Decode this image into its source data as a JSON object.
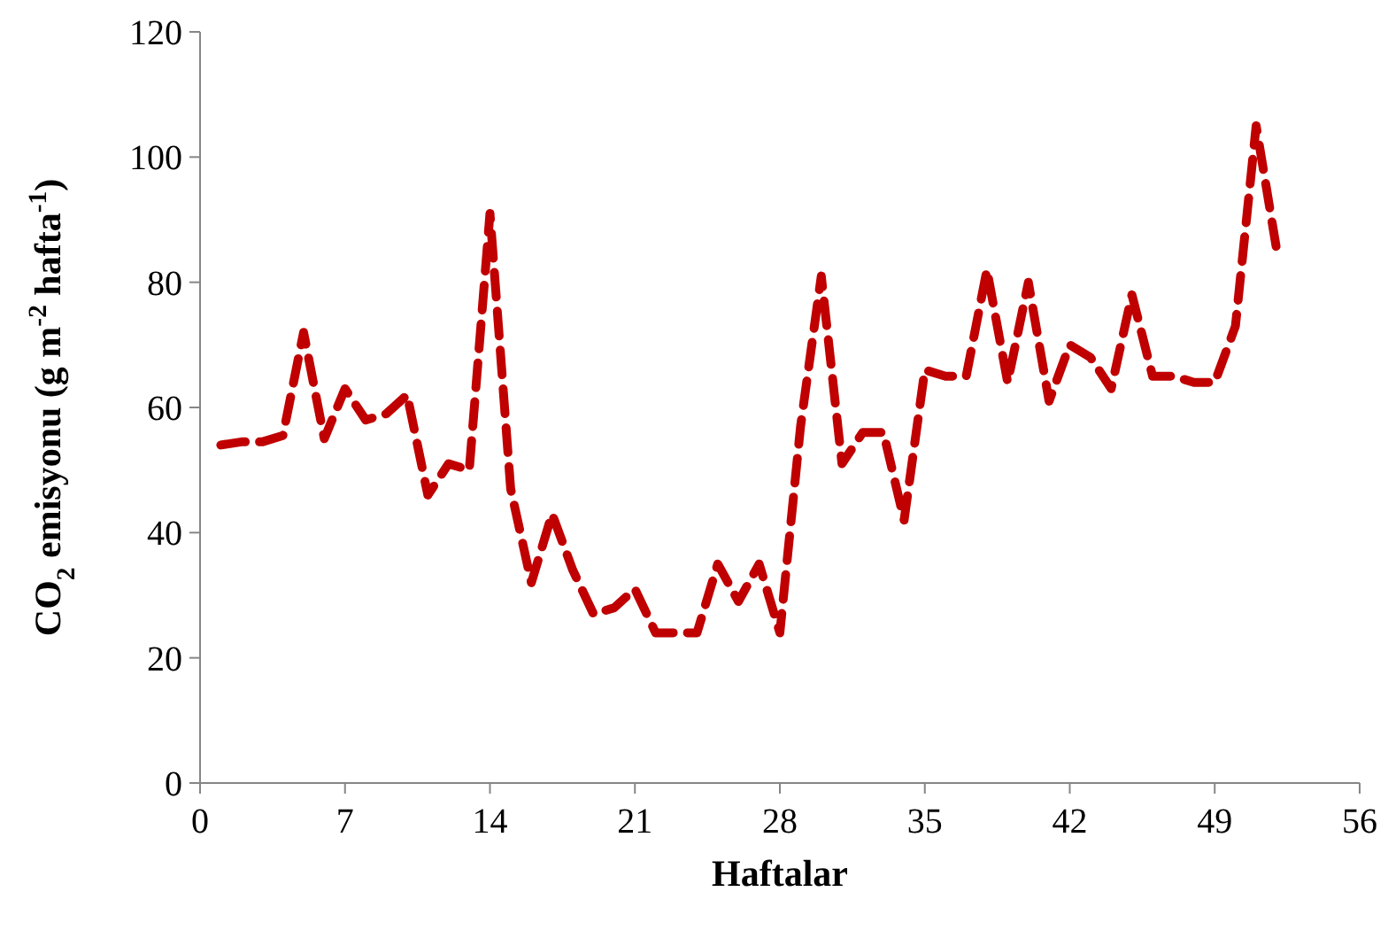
{
  "chart_data": {
    "type": "line",
    "xlabel": "Haftalar",
    "ylabel": "CO$_{2}$ emisyonu (g m$^{-2}$ hafta$^{-1}$)",
    "x": [
      1,
      2,
      3,
      4,
      5,
      6,
      7,
      8,
      9,
      10,
      11,
      12,
      13,
      14,
      15,
      16,
      17,
      18,
      19,
      20,
      21,
      22,
      23,
      24,
      25,
      26,
      27,
      28,
      29,
      30,
      31,
      32,
      33,
      34,
      35,
      36,
      37,
      38,
      39,
      40,
      41,
      42,
      43,
      44,
      45,
      46,
      47,
      48,
      49,
      50,
      51,
      52
    ],
    "series": [
      {
        "color": "#c00000",
        "values": [
          54,
          54.5,
          54.5,
          55.5,
          72,
          55,
          63,
          58,
          59,
          62,
          46,
          51,
          50,
          91,
          47,
          32,
          43,
          34,
          27,
          28,
          31,
          24,
          24,
          24,
          35,
          29,
          35,
          24,
          57,
          81,
          51,
          56,
          56,
          42,
          66,
          65,
          65,
          82,
          64,
          80,
          61,
          70,
          68,
          63,
          78,
          65,
          65,
          64,
          64,
          73,
          105,
          85
        ]
      }
    ],
    "xlim": [
      0,
      56
    ],
    "xticks": [
      0,
      7,
      14,
      21,
      28,
      35,
      42,
      49,
      56
    ],
    "ylim": [
      0,
      120
    ],
    "yticks": [
      0,
      20,
      40,
      60,
      80,
      100,
      120
    ],
    "grid": false,
    "marker": "none",
    "line_style": "dashed"
  }
}
